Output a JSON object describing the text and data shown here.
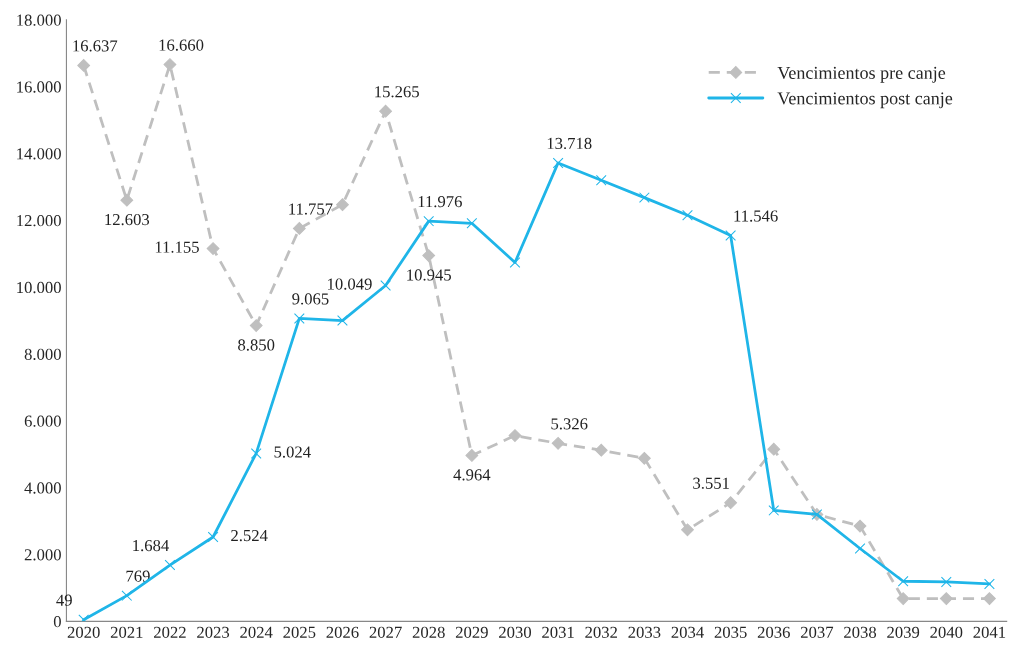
{
  "chart_data": {
    "type": "line",
    "categories": [
      "2020",
      "2021",
      "2022",
      "2023",
      "2024",
      "2025",
      "2026",
      "2027",
      "2028",
      "2029",
      "2030",
      "2031",
      "2032",
      "2033",
      "2034",
      "2035",
      "2036",
      "2037",
      "2038",
      "2039",
      "2040",
      "2041"
    ],
    "series": [
      {
        "name": "Vencimientos pre canje",
        "color": "#bfbfbf",
        "marker": "diamond",
        "line_style": "dashed",
        "values": [
          16637,
          12603,
          16660,
          11155,
          8850,
          11757,
          12470,
          15265,
          10945,
          4964,
          5560,
          5326,
          5120,
          4880,
          2740,
          3551,
          5150,
          3200,
          2850,
          680,
          680,
          680
        ],
        "value_labels": [
          "16.637",
          "12.603",
          "16.660",
          "11.155",
          "8.850",
          "11.757",
          null,
          "15.265",
          "10.945",
          "4.964",
          null,
          "5.326",
          null,
          null,
          null,
          "3.551",
          null,
          null,
          null,
          null,
          null,
          null
        ]
      },
      {
        "name": "Vencimientos post canje",
        "color": "#1fb5e8",
        "marker": "cross",
        "line_style": "solid",
        "values": [
          49,
          769,
          1684,
          2524,
          5024,
          9065,
          9000,
          10049,
          11976,
          11910,
          10740,
          13718,
          13200,
          12680,
          12150,
          11546,
          3320,
          3200,
          2180,
          1200,
          1180,
          1120
        ],
        "value_labels": [
          "49",
          "769",
          "1.684",
          "2.524",
          "5.024",
          "9.065",
          null,
          "10.049",
          "11.976",
          null,
          null,
          "13.718",
          null,
          null,
          null,
          "11.546",
          null,
          null,
          null,
          null,
          null,
          null
        ]
      }
    ],
    "ylim": [
      0,
      18000
    ],
    "yticks": [
      0,
      {
        "value": 2000,
        "label": "2.000"
      },
      {
        "value": 4000,
        "label": "4.000"
      },
      {
        "value": 6000,
        "label": "6.000"
      },
      {
        "value": 8000,
        "label": "8.000"
      },
      {
        "value": 10000,
        "label": "10.000"
      },
      {
        "value": 12000,
        "label": "12.000"
      },
      {
        "value": 14000,
        "label": "14.000"
      },
      {
        "value": 16000,
        "label": "16.000"
      },
      {
        "value": 18000,
        "label": "18.000"
      }
    ],
    "grid": false,
    "legend": "top right"
  }
}
